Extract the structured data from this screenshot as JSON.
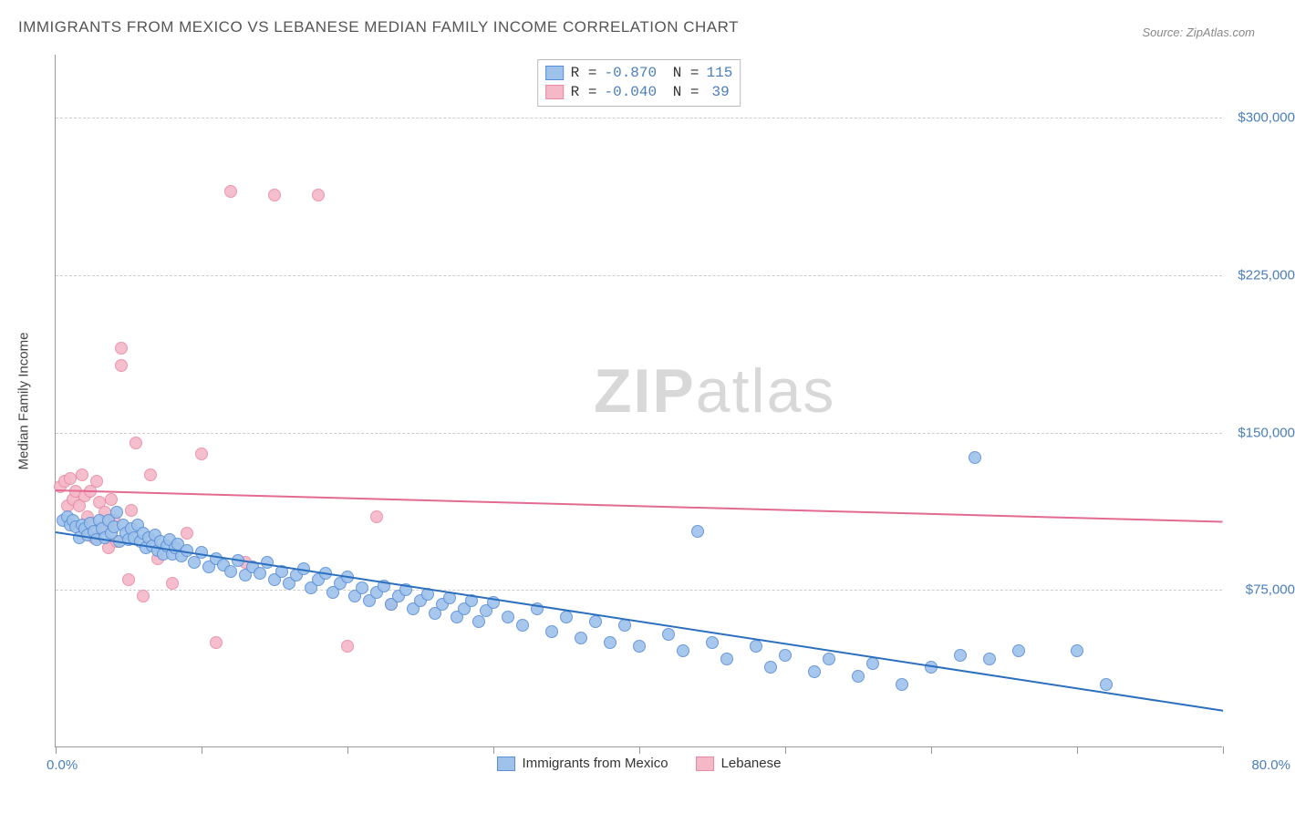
{
  "title": "IMMIGRANTS FROM MEXICO VS LEBANESE MEDIAN FAMILY INCOME CORRELATION CHART",
  "source_label": "Source: ZipAtlas.com",
  "watermark_text_bold": "ZIP",
  "watermark_text_rest": "atlas",
  "chart": {
    "type": "scatter",
    "xlim": [
      0,
      80
    ],
    "ylim": [
      0,
      330000
    ],
    "x_min_label": "0.0%",
    "x_max_label": "80.0%",
    "ylabel": "Median Family Income",
    "y_gridlines": [
      75000,
      150000,
      225000,
      300000
    ],
    "y_gridline_labels": [
      "$75,000",
      "$150,000",
      "$225,000",
      "$300,000"
    ],
    "x_tick_positions": [
      0,
      10,
      20,
      30,
      40,
      50,
      60,
      70,
      80
    ],
    "background_color": "#ffffff",
    "grid_color": "#cccccc",
    "axis_color": "#999999",
    "tick_label_color": "#4a7ebb",
    "marker_radius": 7,
    "marker_border_width": 1,
    "marker_fill_opacity": 0.35
  },
  "series": [
    {
      "id": "mexico",
      "label": "Immigrants from Mexico",
      "fill_color": "#9ec2ea",
      "stroke_color": "#5a8fd6",
      "line_color": "#2c6fbf",
      "line_width": 2,
      "R": "-0.870",
      "N": "115",
      "trend": {
        "x1": 0,
        "y1": 103000,
        "x2": 80,
        "y2": 18000
      },
      "points": [
        [
          0.5,
          108000
        ],
        [
          0.8,
          110000
        ],
        [
          1.0,
          106000
        ],
        [
          1.2,
          108000
        ],
        [
          1.4,
          105000
        ],
        [
          1.6,
          100000
        ],
        [
          1.8,
          106000
        ],
        [
          2.0,
          104000
        ],
        [
          2.2,
          101000
        ],
        [
          2.4,
          107000
        ],
        [
          2.6,
          103000
        ],
        [
          2.8,
          99000
        ],
        [
          3.0,
          108000
        ],
        [
          3.2,
          104000
        ],
        [
          3.4,
          100000
        ],
        [
          3.6,
          108000
        ],
        [
          3.8,
          102000
        ],
        [
          4.0,
          105000
        ],
        [
          4.2,
          112000
        ],
        [
          4.4,
          98000
        ],
        [
          4.6,
          106000
        ],
        [
          4.8,
          102000
        ],
        [
          5.0,
          99000
        ],
        [
          5.2,
          104000
        ],
        [
          5.4,
          100000
        ],
        [
          5.6,
          106000
        ],
        [
          5.8,
          98000
        ],
        [
          6.0,
          102000
        ],
        [
          6.2,
          95000
        ],
        [
          6.4,
          100000
        ],
        [
          6.6,
          96000
        ],
        [
          6.8,
          101000
        ],
        [
          7.0,
          94000
        ],
        [
          7.2,
          98000
        ],
        [
          7.4,
          92000
        ],
        [
          7.6,
          96000
        ],
        [
          7.8,
          99000
        ],
        [
          8.0,
          92000
        ],
        [
          8.2,
          95000
        ],
        [
          8.4,
          97000
        ],
        [
          8.6,
          91000
        ],
        [
          9.0,
          94000
        ],
        [
          9.5,
          88000
        ],
        [
          10.0,
          93000
        ],
        [
          10.5,
          86000
        ],
        [
          11.0,
          90000
        ],
        [
          11.5,
          87000
        ],
        [
          12.0,
          84000
        ],
        [
          12.5,
          89000
        ],
        [
          13.0,
          82000
        ],
        [
          13.5,
          86000
        ],
        [
          14.0,
          83000
        ],
        [
          14.5,
          88000
        ],
        [
          15.0,
          80000
        ],
        [
          15.5,
          84000
        ],
        [
          16.0,
          78000
        ],
        [
          16.5,
          82000
        ],
        [
          17.0,
          85000
        ],
        [
          17.5,
          76000
        ],
        [
          18.0,
          80000
        ],
        [
          18.5,
          83000
        ],
        [
          19.0,
          74000
        ],
        [
          19.5,
          78000
        ],
        [
          20.0,
          81000
        ],
        [
          20.5,
          72000
        ],
        [
          21.0,
          76000
        ],
        [
          21.5,
          70000
        ],
        [
          22.0,
          74000
        ],
        [
          22.5,
          77000
        ],
        [
          23.0,
          68000
        ],
        [
          23.5,
          72000
        ],
        [
          24.0,
          75000
        ],
        [
          24.5,
          66000
        ],
        [
          25.0,
          70000
        ],
        [
          25.5,
          73000
        ],
        [
          26.0,
          64000
        ],
        [
          26.5,
          68000
        ],
        [
          27.0,
          71000
        ],
        [
          27.5,
          62000
        ],
        [
          28.0,
          66000
        ],
        [
          28.5,
          70000
        ],
        [
          29.0,
          60000
        ],
        [
          29.5,
          65000
        ],
        [
          30.0,
          69000
        ],
        [
          31.0,
          62000
        ],
        [
          32.0,
          58000
        ],
        [
          33.0,
          66000
        ],
        [
          34.0,
          55000
        ],
        [
          35.0,
          62000
        ],
        [
          36.0,
          52000
        ],
        [
          37.0,
          60000
        ],
        [
          38.0,
          50000
        ],
        [
          39.0,
          58000
        ],
        [
          40.0,
          48000
        ],
        [
          42.0,
          54000
        ],
        [
          43.0,
          46000
        ],
        [
          44.0,
          103000
        ],
        [
          45.0,
          50000
        ],
        [
          46.0,
          42000
        ],
        [
          48.0,
          48000
        ],
        [
          49.0,
          38000
        ],
        [
          50.0,
          44000
        ],
        [
          52.0,
          36000
        ],
        [
          53.0,
          42000
        ],
        [
          55.0,
          34000
        ],
        [
          56.0,
          40000
        ],
        [
          58.0,
          30000
        ],
        [
          60.0,
          38000
        ],
        [
          62.0,
          44000
        ],
        [
          63.0,
          138000
        ],
        [
          64.0,
          42000
        ],
        [
          66.0,
          46000
        ],
        [
          70.0,
          46000
        ],
        [
          72.0,
          30000
        ]
      ]
    },
    {
      "id": "lebanese",
      "label": "Lebanese",
      "fill_color": "#f4b8c7",
      "stroke_color": "#e88aa5",
      "line_color": "#e26b8f",
      "line_width": 2,
      "R": "-0.040",
      "N": "39",
      "trend": {
        "x1": 0,
        "y1": 123000,
        "x2": 80,
        "y2": 108000
      },
      "points": [
        [
          0.3,
          124000
        ],
        [
          0.6,
          127000
        ],
        [
          0.8,
          115000
        ],
        [
          1.0,
          128000
        ],
        [
          1.2,
          118000
        ],
        [
          1.4,
          122000
        ],
        [
          1.6,
          115000
        ],
        [
          1.8,
          130000
        ],
        [
          2.0,
          120000
        ],
        [
          2.2,
          110000
        ],
        [
          2.4,
          122000
        ],
        [
          2.6,
          100000
        ],
        [
          2.8,
          127000
        ],
        [
          3.0,
          117000
        ],
        [
          3.2,
          105000
        ],
        [
          3.4,
          112000
        ],
        [
          3.6,
          95000
        ],
        [
          3.8,
          118000
        ],
        [
          4.0,
          108000
        ],
        [
          4.2,
          98000
        ],
        [
          4.5,
          190000
        ],
        [
          4.5,
          182000
        ],
        [
          5.0,
          80000
        ],
        [
          5.2,
          113000
        ],
        [
          5.5,
          145000
        ],
        [
          6.0,
          72000
        ],
        [
          6.5,
          130000
        ],
        [
          7.0,
          90000
        ],
        [
          8.0,
          78000
        ],
        [
          9.0,
          102000
        ],
        [
          10.0,
          140000
        ],
        [
          11.0,
          50000
        ],
        [
          12.0,
          265000
        ],
        [
          13.0,
          88000
        ],
        [
          15.0,
          263000
        ],
        [
          18.0,
          263000
        ],
        [
          20.0,
          48000
        ],
        [
          22.0,
          110000
        ],
        [
          23.0,
          68000
        ]
      ]
    }
  ]
}
